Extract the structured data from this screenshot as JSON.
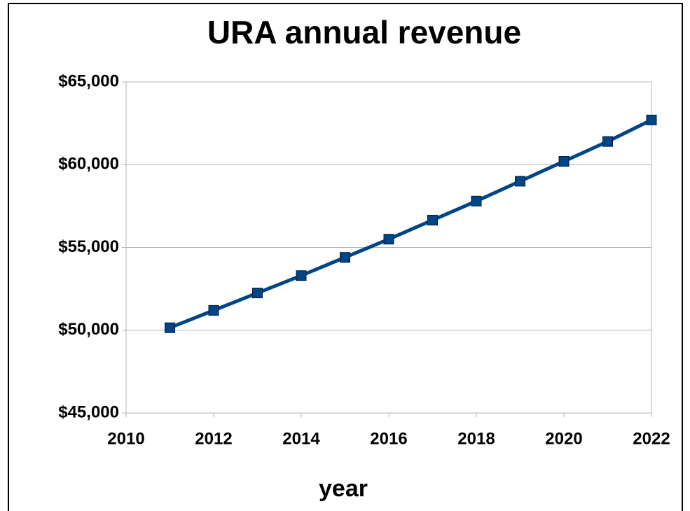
{
  "chart_data": {
    "type": "line",
    "title": "URA annual revenue",
    "x_label": "year",
    "x": [
      2011,
      2012,
      2013,
      2014,
      2015,
      2016,
      2017,
      2018,
      2019,
      2020,
      2021,
      2022
    ],
    "series": [
      {
        "name": "revenue",
        "color": "#004586",
        "values": [
          50150,
          51200,
          52250,
          53300,
          54400,
          55500,
          56650,
          57800,
          59000,
          60200,
          61400,
          62700
        ]
      }
    ],
    "xlim": [
      2010,
      2022
    ],
    "xticks": [
      2010,
      2012,
      2014,
      2016,
      2018,
      2020,
      2022
    ],
    "ylim": [
      45000,
      65000
    ],
    "yticks": [
      {
        "value": 45000,
        "label": "$45,000"
      },
      {
        "value": 50000,
        "label": "$50,000"
      },
      {
        "value": 55000,
        "label": "$55,000"
      },
      {
        "value": 60000,
        "label": "$60,000"
      },
      {
        "value": 65000,
        "label": "$65,000"
      }
    ],
    "grid": true,
    "legend": false
  }
}
